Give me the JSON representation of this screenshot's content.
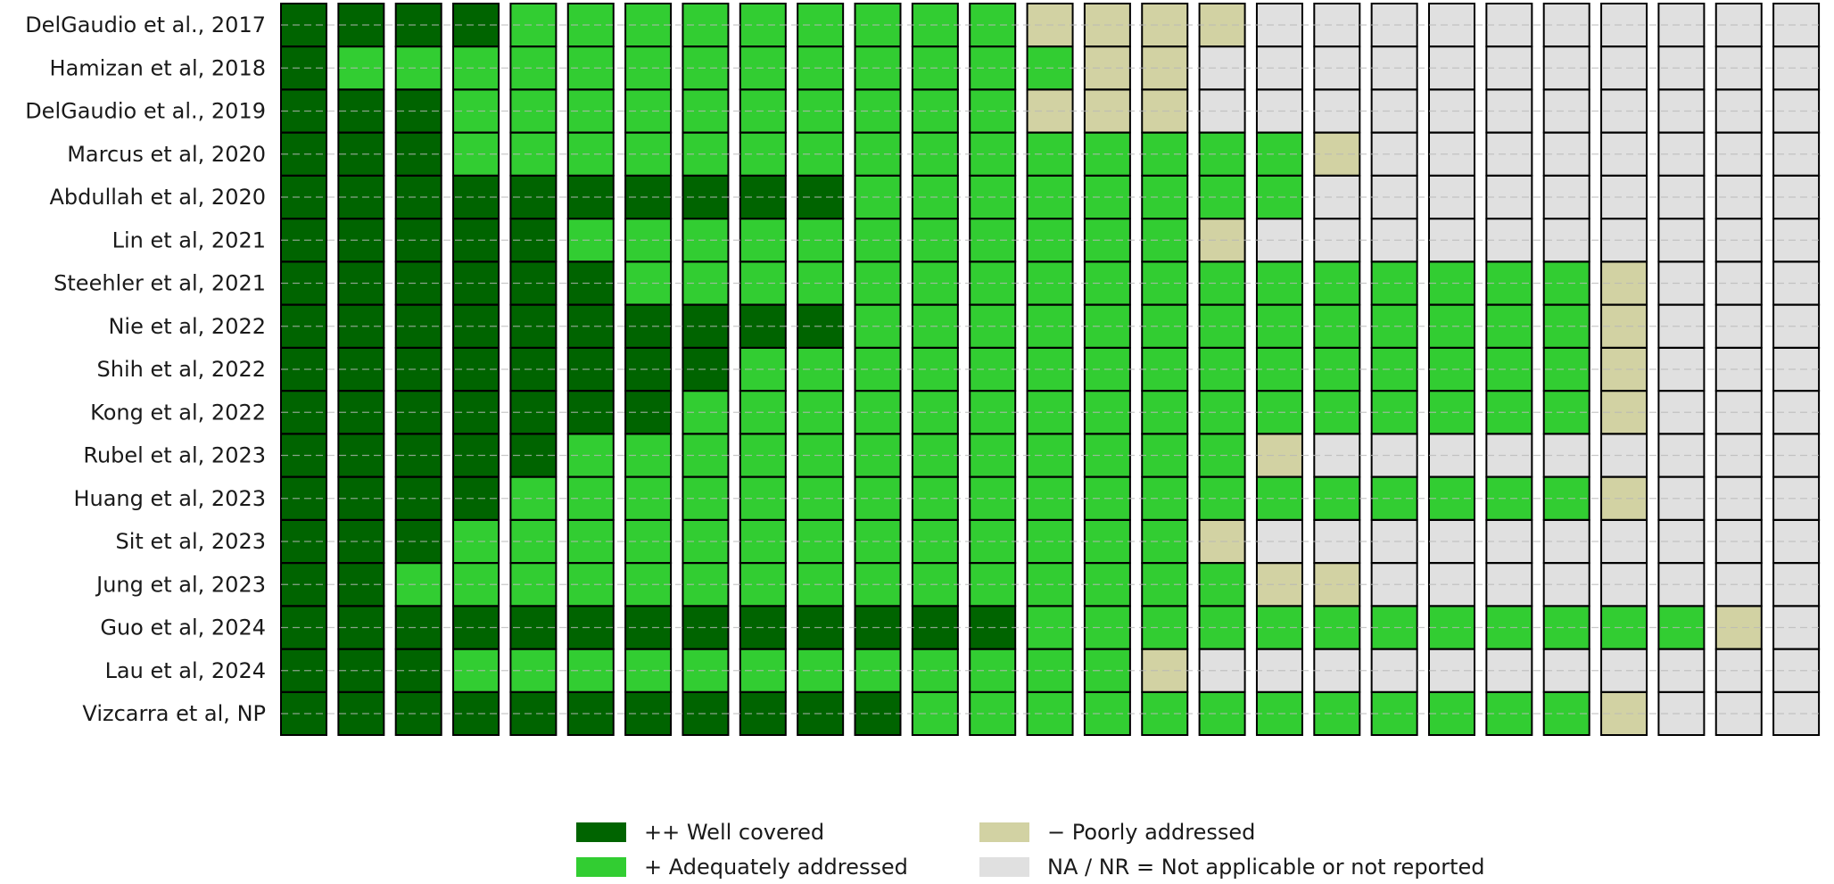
{
  "chart_data": {
    "type": "heatmap",
    "title": "",
    "xlabel": "",
    "ylabel": "",
    "rows": [
      "DelGaudio et al., 2017",
      "Hamizan et al, 2018",
      "DelGaudio et al., 2019",
      "Marcus et al, 2020",
      "Abdullah et al, 2020",
      "Lin et al, 2021",
      "Steehler et al, 2021",
      "Nie et al, 2022",
      "Shih et al, 2022",
      "Kong et al, 2022",
      "Rubel et al, 2023",
      "Huang et al, 2023",
      "Sit et al, 2023",
      "Jung et al, 2023",
      "Guo et al, 2024",
      "Lau et al, 2024",
      "Vizcarra et al, NP"
    ],
    "num_columns": 27,
    "grid": "horizontal-dashed",
    "legend_position": "bottom-center",
    "categories": [
      {
        "code": "W",
        "label": "++ Well covered",
        "color": "#006400"
      },
      {
        "code": "A",
        "label": "+ Adequately addressed",
        "color": "#32cd32"
      },
      {
        "code": "P",
        "label": "− Poorly addressed",
        "color": "#d2d2a3"
      },
      {
        "code": "N",
        "label": "NA / NR = Not applicable or not reported",
        "color": "#e0e0e0"
      }
    ],
    "legend_order": [
      "W",
      "P",
      "A",
      "N"
    ],
    "matrix": [
      "WWWWAAAAAAAAAPPPPNNNNNNNNNN",
      "WAAAAAAAAAAAAAPPNNNNNNNNNNN",
      "WWWAAAAAAAAAAPPPNNNNNNNNNNN",
      "WWWAAAAAAAAAAAAAAAPNNNNNNNN",
      "WWWWWWWWWWAAAAAAAANNNNNNNNN",
      "WWWWWAAAAAAAAAAAPNNNNNNNNNN",
      "WWWWWWAAAAAAAAAAAAAAAAAPNNN",
      "WWWWWWWWWWAAAAAAAAAAAAAPNNN",
      "WWWWWWWWAAAAAAAAAAAAAAAPNNN",
      "WWWWWWWAAAAAAAAAAAAAAAAPNNN",
      "WWWWWAAAAAAAAAAAAPNNNNNNNNN",
      "WWWWAAAAAAAAAAAAAAAAAAAPNNN",
      "WWWAAAAAAAAAAAAAPNNNNNNNNNN",
      "WWAAAAAAAAAAAAAAAPPNNNNNNNN",
      "WWWWWWWWWWWWWAAAAAAAAAAAAPN",
      "WWWAAAAAAAAAAAAPNNNNNNNNNNN",
      "WWWWWWWWWWWAAAAAAAAAAAAPNNN"
    ]
  }
}
